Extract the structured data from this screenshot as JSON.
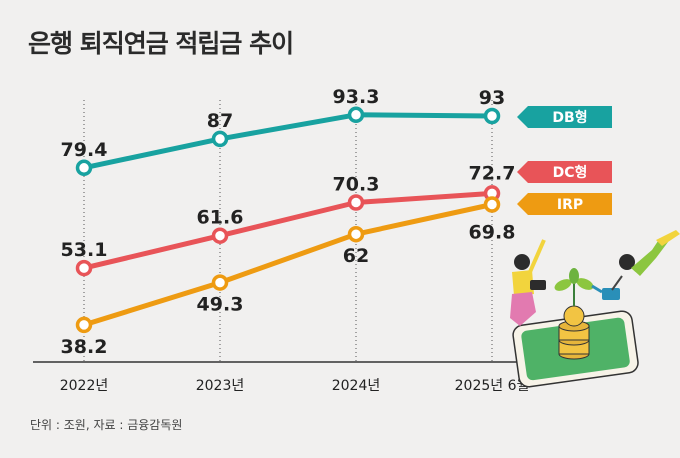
{
  "title": "은행 퇴직연금 적립금 추이",
  "footnote": "단위 : 조원, 자료 : 금융감독원",
  "colors": {
    "DB형": "#18a2a0",
    "DC형": "#e85458",
    "IRP": "#ee9b12",
    "axis": "#333333",
    "grid": "#555555"
  },
  "chart_data": {
    "type": "line",
    "categories": [
      "2022년",
      "2023년",
      "2024년",
      "2025년 6월"
    ],
    "series": [
      {
        "name": "DB형",
        "values": [
          79.4,
          87,
          93.3,
          93
        ],
        "labels": [
          "79.4",
          "87",
          "93.3",
          "93"
        ]
      },
      {
        "name": "DC형",
        "values": [
          53.1,
          61.6,
          70.3,
          72.7
        ],
        "labels": [
          "53.1",
          "61.6",
          "70.3",
          "72.7"
        ]
      },
      {
        "name": "IRP",
        "values": [
          38.2,
          49.3,
          62,
          69.8
        ],
        "labels": [
          "38.2",
          "49.3",
          "62",
          "69.8"
        ]
      }
    ],
    "legend": "right",
    "grid": "vertical dotted lines"
  }
}
